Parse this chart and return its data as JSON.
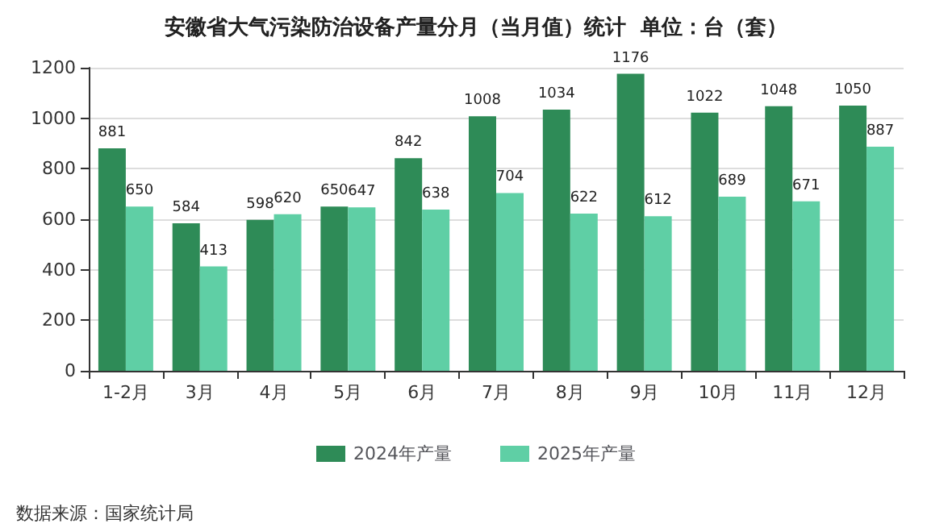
{
  "chart_data": {
    "type": "bar",
    "title": "安徽省大气污染防治设备产量分月（当月值）统计  单位：台（套）",
    "categories": [
      "1-2月",
      "3月",
      "4月",
      "5月",
      "6月",
      "7月",
      "8月",
      "9月",
      "10月",
      "11月",
      "12月"
    ],
    "series": [
      {
        "name": "2024年产量",
        "color": "#2e8b57",
        "values": [
          881,
          584,
          598,
          650,
          842,
          1008,
          1034,
          1176,
          1022,
          1048,
          1050
        ]
      },
      {
        "name": "2025年产量",
        "color": "#5fcfa5",
        "values": [
          650,
          413,
          620,
          647,
          638,
          704,
          622,
          612,
          689,
          671,
          887
        ]
      }
    ],
    "ylim": [
      0,
      1200
    ],
    "yticks": [
      0,
      200,
      400,
      600,
      800,
      1000,
      1200
    ],
    "grid": "y",
    "legend": "bottom",
    "data_labels": true,
    "annotations": [
      "数据来源：国家统计局"
    ]
  }
}
